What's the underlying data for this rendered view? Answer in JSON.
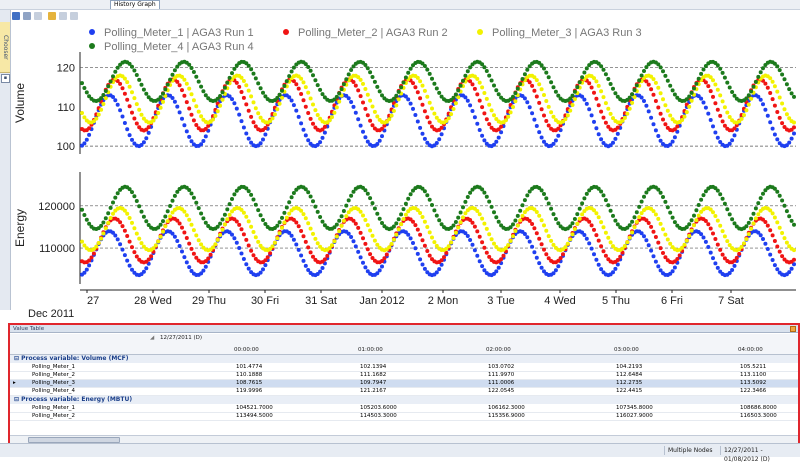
{
  "tab": {
    "label": "History Graph"
  },
  "chooser": {
    "label": "Chooser"
  },
  "legend": [
    {
      "name": "Polling_Meter_1 | AGA3 Run 1",
      "color": "#1f3ff0"
    },
    {
      "name": "Polling_Meter_2 | AGA3 Run 2",
      "color": "#f01414"
    },
    {
      "name": "Polling_Meter_3 | AGA3 Run 3",
      "color": "#f2f200"
    },
    {
      "name": "Polling_Meter_4 | AGA3 Run 4",
      "color": "#1c7a1c"
    }
  ],
  "chart_data": [
    {
      "type": "scatter",
      "ylabel": "Volume",
      "ylim": [
        98,
        124
      ],
      "yticks": [
        "100",
        "110",
        "120"
      ],
      "ytick_values": [
        100,
        110,
        120
      ],
      "gridlines": [
        100,
        120
      ],
      "series": [
        {
          "name": "Polling_Meter_1 | AGA3 Run 1",
          "color": "#1f3ff0",
          "center": 106.5,
          "amp": 6.5,
          "phase": 0.0
        },
        {
          "name": "Polling_Meter_2 | AGA3 Run 2",
          "color": "#f01414",
          "center": 110.5,
          "amp": 6.5,
          "phase": 0.55
        },
        {
          "name": "Polling_Meter_3 | AGA3 Run 3",
          "color": "#f2f200",
          "center": 112.0,
          "amp": 6.0,
          "phase": 1.15
        },
        {
          "name": "Polling_Meter_4 | AGA3 Run 4",
          "color": "#1c7a1c",
          "center": 116.5,
          "amp": 5.0,
          "phase": 1.7
        }
      ]
    },
    {
      "type": "scatter",
      "ylabel": "Energy",
      "ylim": [
        101500,
        128000
      ],
      "yticks": [
        "110000",
        "120000"
      ],
      "ytick_values": [
        110000,
        120000
      ],
      "gridlines": [
        110000,
        120000
      ],
      "series": [
        {
          "name": "Polling_Meter_1 | AGA3 Run 1",
          "color": "#1f3ff0",
          "center": 108800,
          "amp": 5200,
          "phase": 0.0
        },
        {
          "name": "Polling_Meter_2 | AGA3 Run 2",
          "color": "#f01414",
          "center": 111800,
          "amp": 5200,
          "phase": 0.55
        },
        {
          "name": "Polling_Meter_3 | AGA3 Run 3",
          "color": "#f2f200",
          "center": 114500,
          "amp": 5000,
          "phase": 1.15
        },
        {
          "name": "Polling_Meter_4 | AGA3 Run 4",
          "color": "#1c7a1c",
          "center": 119500,
          "amp": 5000,
          "phase": 1.7
        }
      ]
    }
  ],
  "xaxis": {
    "ticks": [
      "27",
      "28 Wed",
      "29 Thu",
      "30 Fri",
      "31 Sat",
      "Jan 2012",
      "2 Mon",
      "3 Tue",
      "4 Wed",
      "5 Thu",
      "6 Fri",
      "7 Sat"
    ],
    "sublabel": "Dec  2011"
  },
  "value_table": {
    "title": "Value Table",
    "date_header": "12/27/2011 (D)",
    "times": [
      "00:00:00",
      "01:00:00",
      "02:00:00",
      "03:00:00",
      "04:00:00"
    ],
    "groups": [
      {
        "label": "Process variable: Volume (MCF)",
        "rows": [
          {
            "name": "Polling_Meter_1",
            "values": [
              "101.4774",
              "102.1394",
              "103.0702",
              "104.2193",
              "105.5211"
            ]
          },
          {
            "name": "Polling_Meter_2",
            "values": [
              "110.1888",
              "111.1682",
              "111.9970",
              "112.6484",
              "113.1100"
            ]
          },
          {
            "name": "Polling_Meter_3",
            "values": [
              "108.7615",
              "109.7947",
              "111.0006",
              "112.2735",
              "113.5092"
            ],
            "selected": true
          },
          {
            "name": "Polling_Meter_4",
            "values": [
              "119.9996",
              "121.2167",
              "122.0545",
              "122.4415",
              "122.3466"
            ]
          }
        ]
      },
      {
        "label": "Process variable: Energy (MBTU)",
        "rows": [
          {
            "name": "Polling_Meter_1",
            "values": [
              "104521.7000",
              "105203.6000",
              "106162.3000",
              "107345.8000",
              "108686.8000"
            ]
          },
          {
            "name": "Polling_Meter_2",
            "values": [
              "113494.5000",
              "114503.3000",
              "115356.9000",
              "116027.9000",
              "116503.3000"
            ]
          }
        ]
      }
    ]
  },
  "status": {
    "nodes": "Multiple Nodes",
    "range": "12/27/2011 - 01/08/2012 (D)"
  }
}
